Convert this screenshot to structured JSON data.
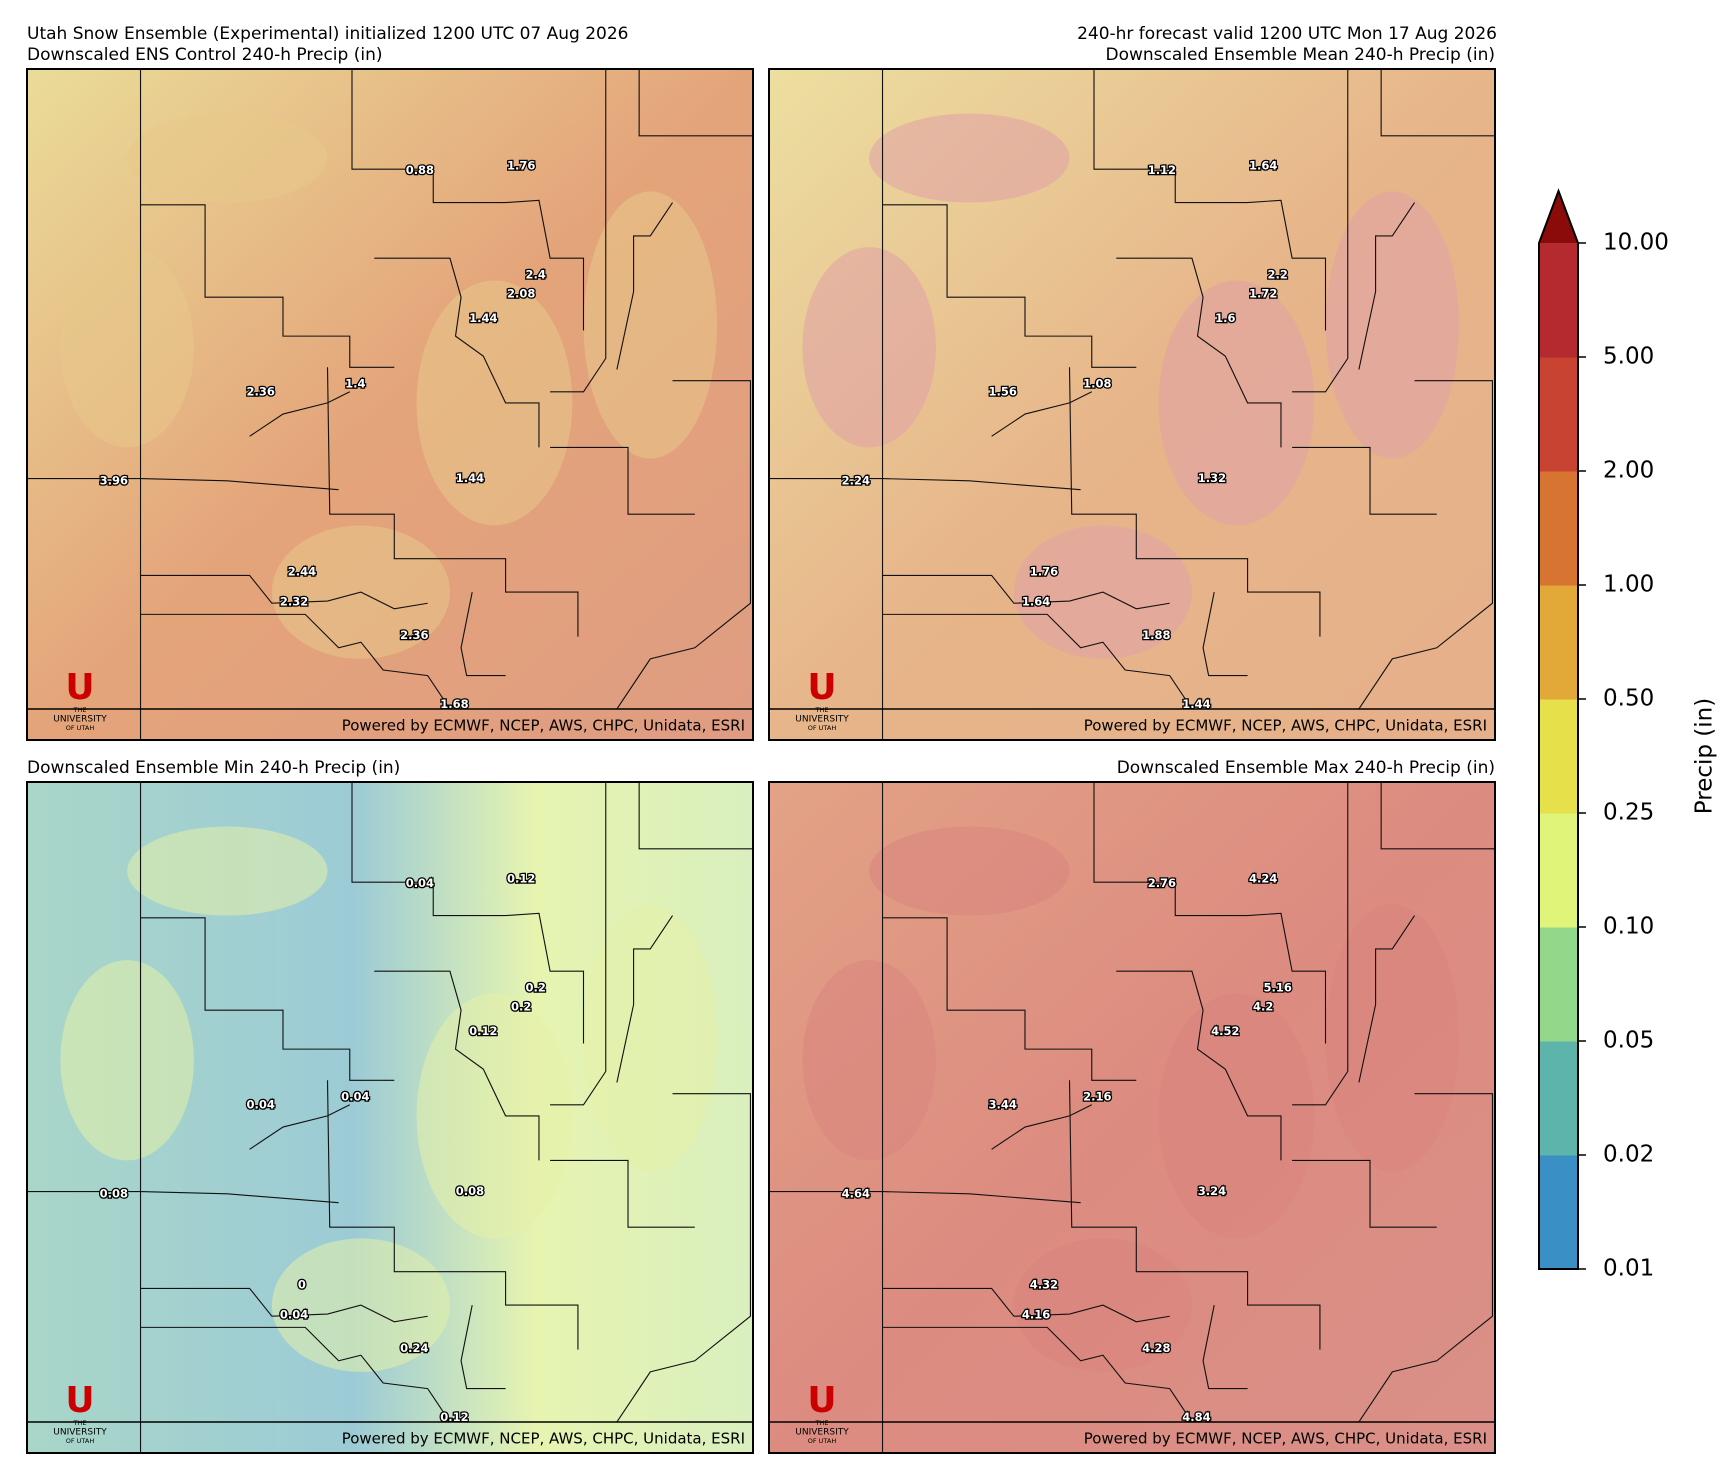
{
  "header": {
    "title_left": "Utah Snow Ensemble (Experimental) initialized 1200 UTC 07 Aug 2026",
    "title_right": "240-hr forecast valid 1200 UTC Mon 17 Aug 2026"
  },
  "credit": "Powered by ECMWF, NCEP, AWS, CHPC, Unidata, ESRI",
  "logo": {
    "letter": "U",
    "line1": "THE",
    "line2": "UNIVERSITY",
    "line3": "OF UTAH"
  },
  "panels": [
    {
      "title": "Downscaled ENS Control 240-h Precip (in)",
      "labels": [
        0.88,
        1.76,
        2.4,
        2.08,
        1.44,
        2.36,
        1.4,
        3.96,
        1.44,
        2.44,
        2.32,
        2.36,
        1.68
      ]
    },
    {
      "title": "Downscaled Ensemble Mean 240-h Precip (in)",
      "labels": [
        1.12,
        1.64,
        2.2,
        1.72,
        1.6,
        1.56,
        1.08,
        2.24,
        1.32,
        1.76,
        1.64,
        1.88,
        1.44
      ]
    },
    {
      "title": "Downscaled Ensemble Min 240-h Precip (in)",
      "labels": [
        0.04,
        0.12,
        0.2,
        0.2,
        0.12,
        0.04,
        0.04,
        0.08,
        0.08,
        0,
        0.04,
        0.24,
        0.12
      ]
    },
    {
      "title": "Downscaled Ensemble Max 240-h Precip (in)",
      "labels": [
        2.76,
        4.24,
        5.16,
        4.2,
        4.52,
        3.44,
        2.16,
        4.64,
        3.24,
        4.32,
        4.16,
        4.28,
        4.84
      ]
    }
  ],
  "colorbar": {
    "label": "Precip (in)",
    "ticks": [
      0.01,
      0.02,
      0.05,
      {
        "value": 0.1,
        "label": "0.10"
      },
      0.25,
      {
        "value": 0.5,
        "label": "0.50"
      },
      {
        "value": 1,
        "label": "1.00"
      },
      {
        "value": 2,
        "label": "2.00"
      },
      {
        "value": 5,
        "label": "5.00"
      },
      {
        "value": 10,
        "label": "10.00"
      }
    ],
    "colors": [
      "#3a8fc4",
      "#5cb4aa",
      "#93d88a",
      "#e0f47a",
      "#e6e04a",
      "#e2a838",
      "#d87432",
      "#c84331",
      "#b42a2e"
    ],
    "extend_color": "#8b0a0a"
  }
}
